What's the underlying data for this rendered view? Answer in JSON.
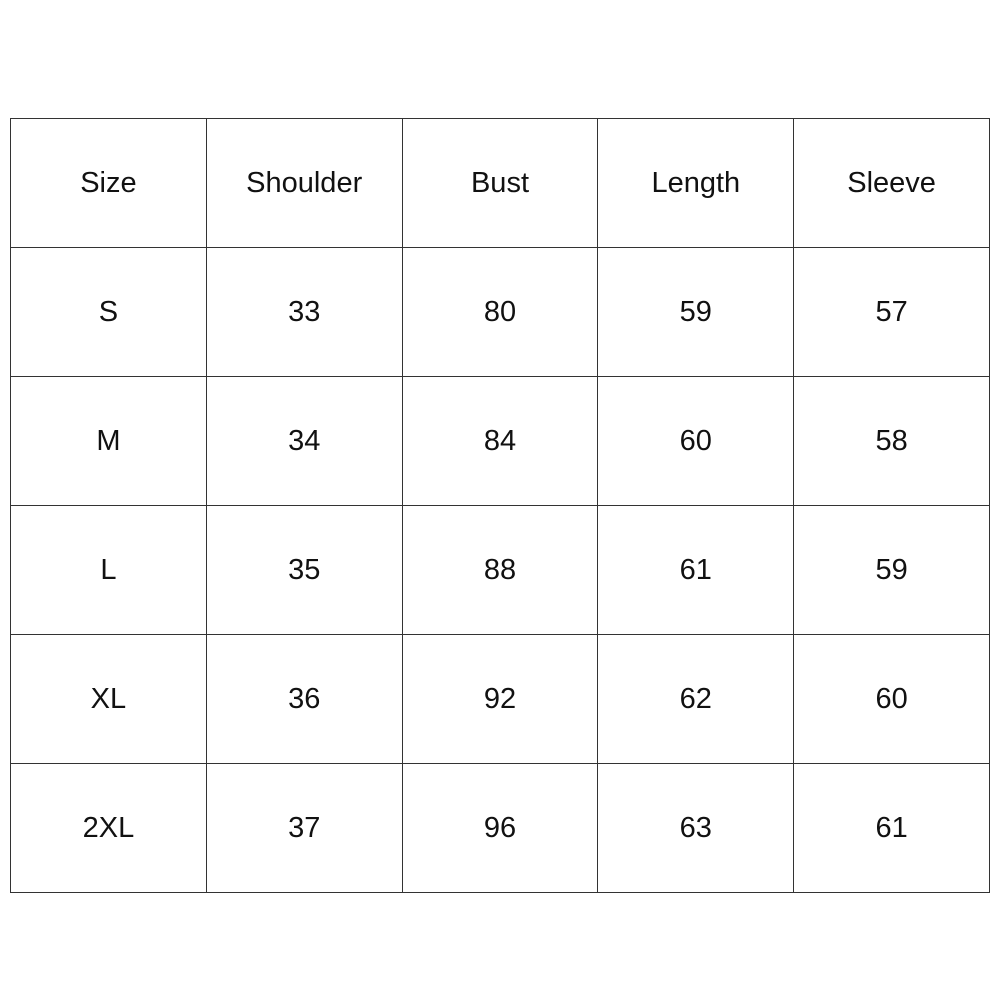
{
  "size_chart": {
    "headers": [
      "Size",
      "Shoulder",
      "Bust",
      "Length",
      "Sleeve"
    ],
    "rows": [
      [
        "S",
        "33",
        "80",
        "59",
        "57"
      ],
      [
        "M",
        "34",
        "84",
        "60",
        "58"
      ],
      [
        "L",
        "35",
        "88",
        "61",
        "59"
      ],
      [
        "XL",
        "36",
        "92",
        "62",
        "60"
      ],
      [
        "2XL",
        "37",
        "96",
        "63",
        "61"
      ]
    ]
  }
}
